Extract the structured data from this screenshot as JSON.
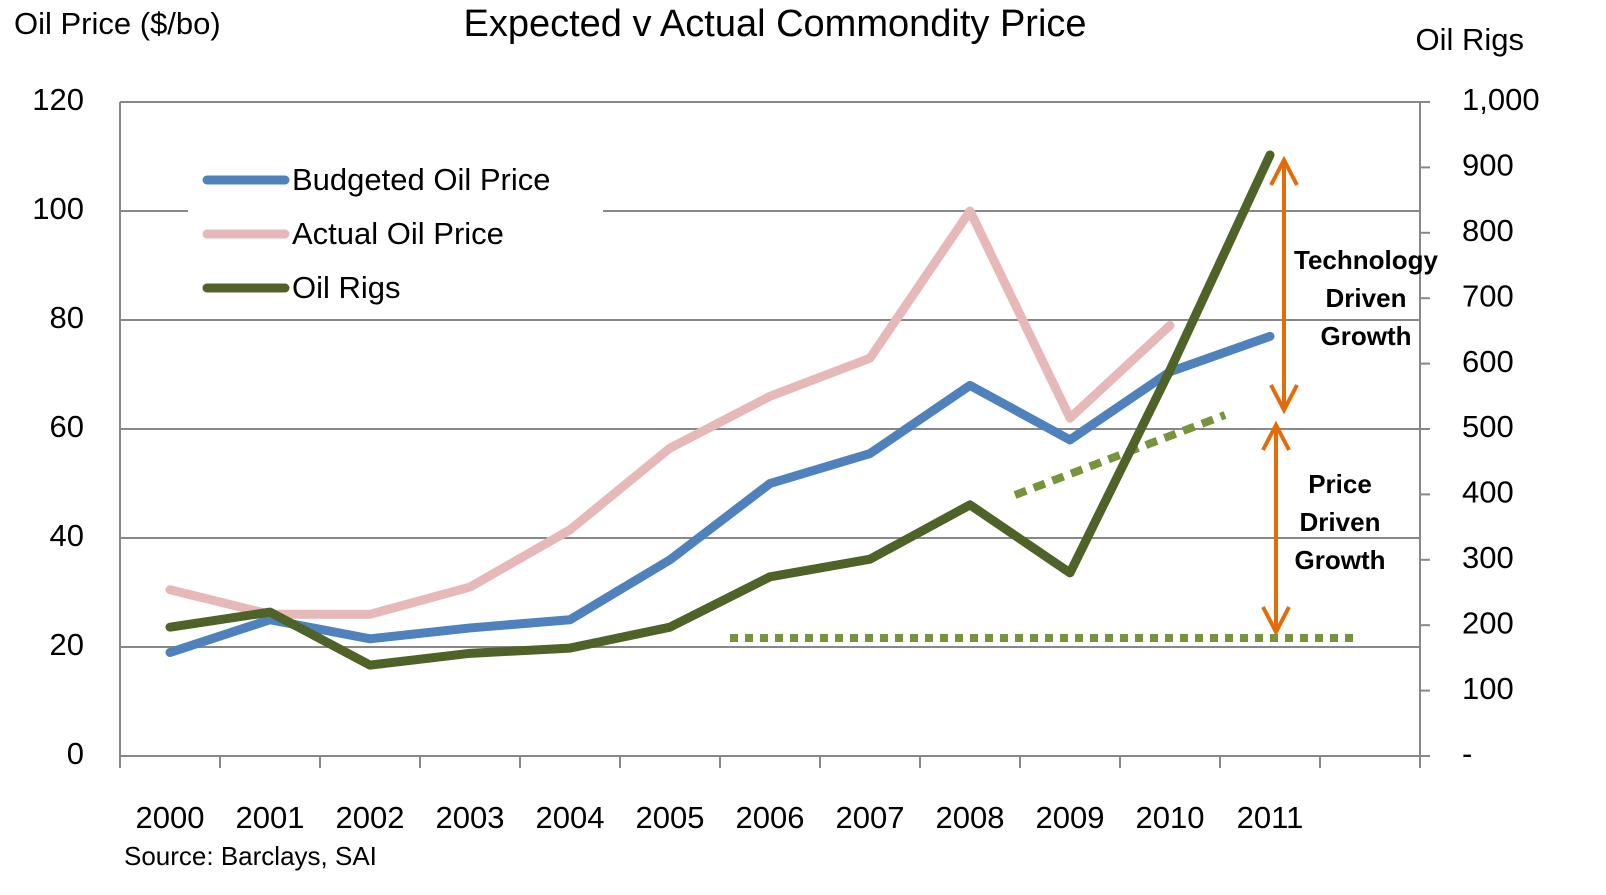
{
  "chart_data": {
    "type": "line",
    "title": "Expected v Actual Commondity Price",
    "y_label": "Oil Price ($/bo)",
    "y2_label": "Oil Rigs",
    "source": "Source:  Barclays, SAI",
    "categories": [
      "2000",
      "2001",
      "2002",
      "2003",
      "2004",
      "2005",
      "2006",
      "2007",
      "2008",
      "2009",
      "2010",
      "2011",
      null
    ],
    "series": [
      {
        "name": "Budgeted Oil Price",
        "color": "#4f81bd",
        "values": [
          19,
          25,
          21.5,
          23.5,
          25,
          36,
          50,
          55.5,
          68,
          58,
          70.5,
          77,
          null
        ]
      },
      {
        "name": "Actual Oil Price",
        "color": "#e6b9b8",
        "values": [
          30.5,
          26,
          26,
          31,
          41.5,
          56.5,
          66,
          73,
          100,
          62,
          79,
          null,
          null
        ]
      },
      {
        "name": "Oil Rigs",
        "color": "#4f6228",
        "axis": "y2",
        "values": [
          197,
          220,
          139,
          157,
          165,
          197,
          274,
          301,
          384,
          280,
          590,
          919,
          null
        ]
      }
    ],
    "ylim": [
      0,
      120
    ],
    "yticks": [
      0,
      20,
      40,
      60,
      80,
      100,
      120
    ],
    "y2lim": [
      0,
      1000
    ],
    "y2ticks": [
      {
        "value": 0,
        "label": "-"
      },
      100,
      200,
      300,
      400,
      500,
      600,
      700,
      800,
      900,
      {
        "value": 1000,
        "label": "1,000"
      }
    ],
    "grid": true,
    "legend": "upper left",
    "annotations": [
      {
        "lines": [
          "Technology",
          "Driven",
          "Growth"
        ]
      },
      {
        "lines": [
          "Price",
          "Driven",
          "Growth"
        ]
      }
    ]
  }
}
